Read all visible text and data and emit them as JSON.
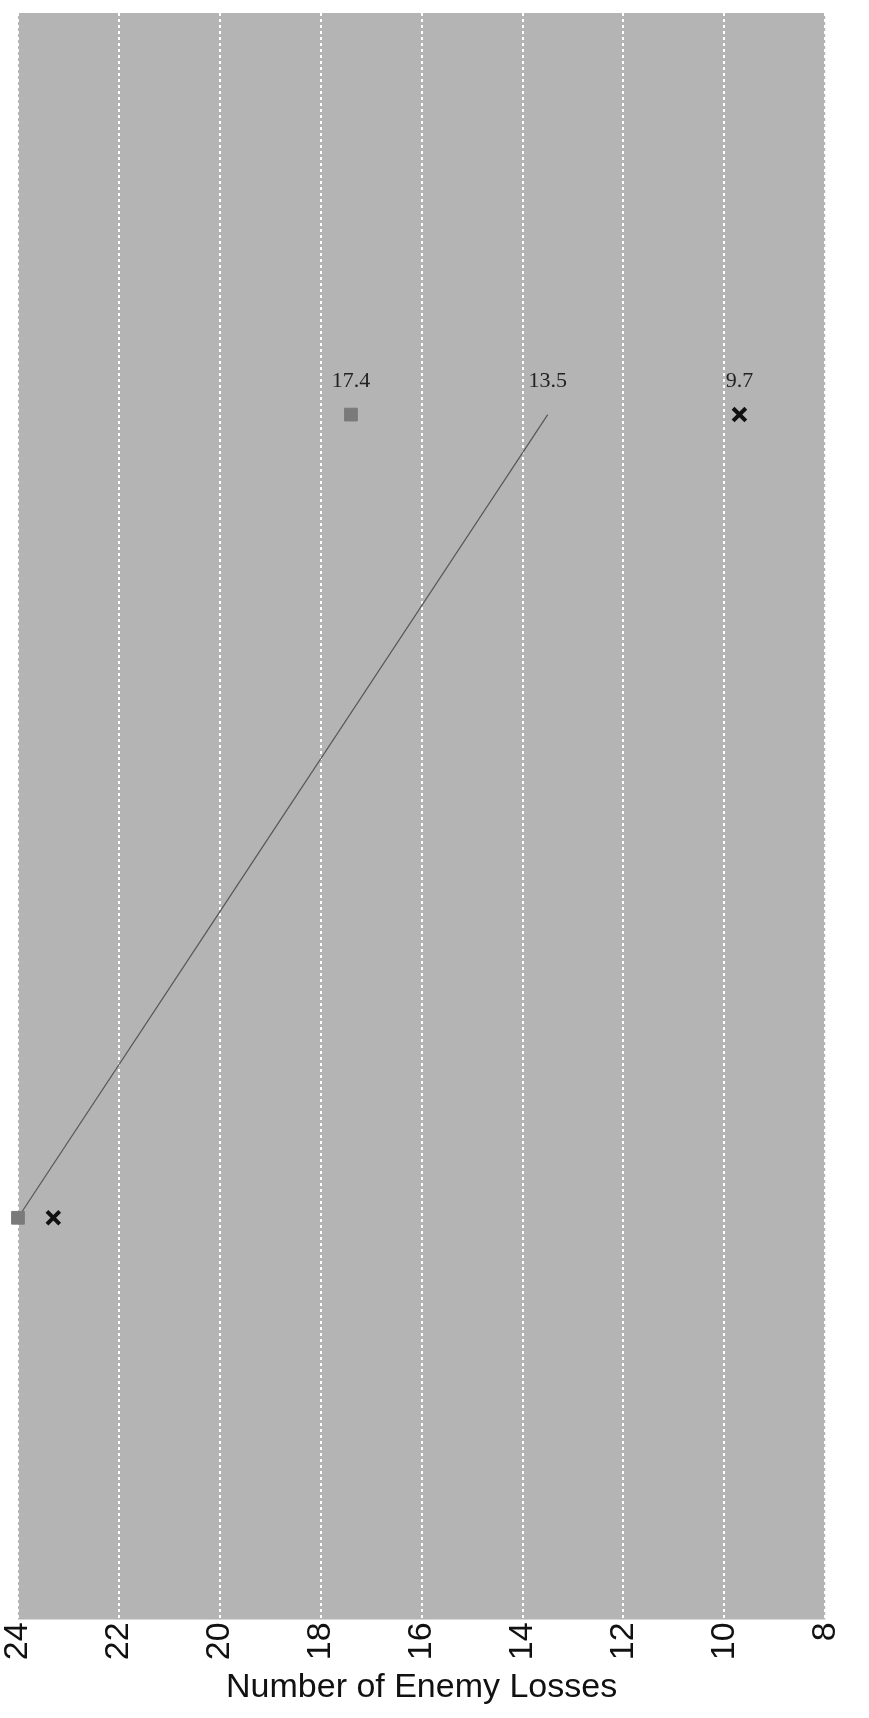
{
  "chart_data": {
    "type": "scatter",
    "orientation": "horizontal",
    "xlabel": "Number of Enemy Losses",
    "categories": [
      null,
      null
    ],
    "xlim": [
      24,
      8
    ],
    "xticks": [
      24,
      22,
      20,
      18,
      16,
      14,
      12,
      10,
      8
    ],
    "grid": "x",
    "series": [
      {
        "marker": "square",
        "color": "#7a7a7a",
        "values": [
          17.4,
          24
        ],
        "value_labels": [
          "17.4",
          null
        ]
      },
      {
        "marker": "cross",
        "color": "#111111",
        "values": [
          9.7,
          23.3
        ],
        "value_labels": [
          "9.7",
          null
        ]
      },
      {
        "type": "line",
        "marker": "none",
        "color": "#555555",
        "values": [
          13.5,
          24
        ],
        "value_labels": [
          "13.5",
          null
        ]
      }
    ]
  }
}
